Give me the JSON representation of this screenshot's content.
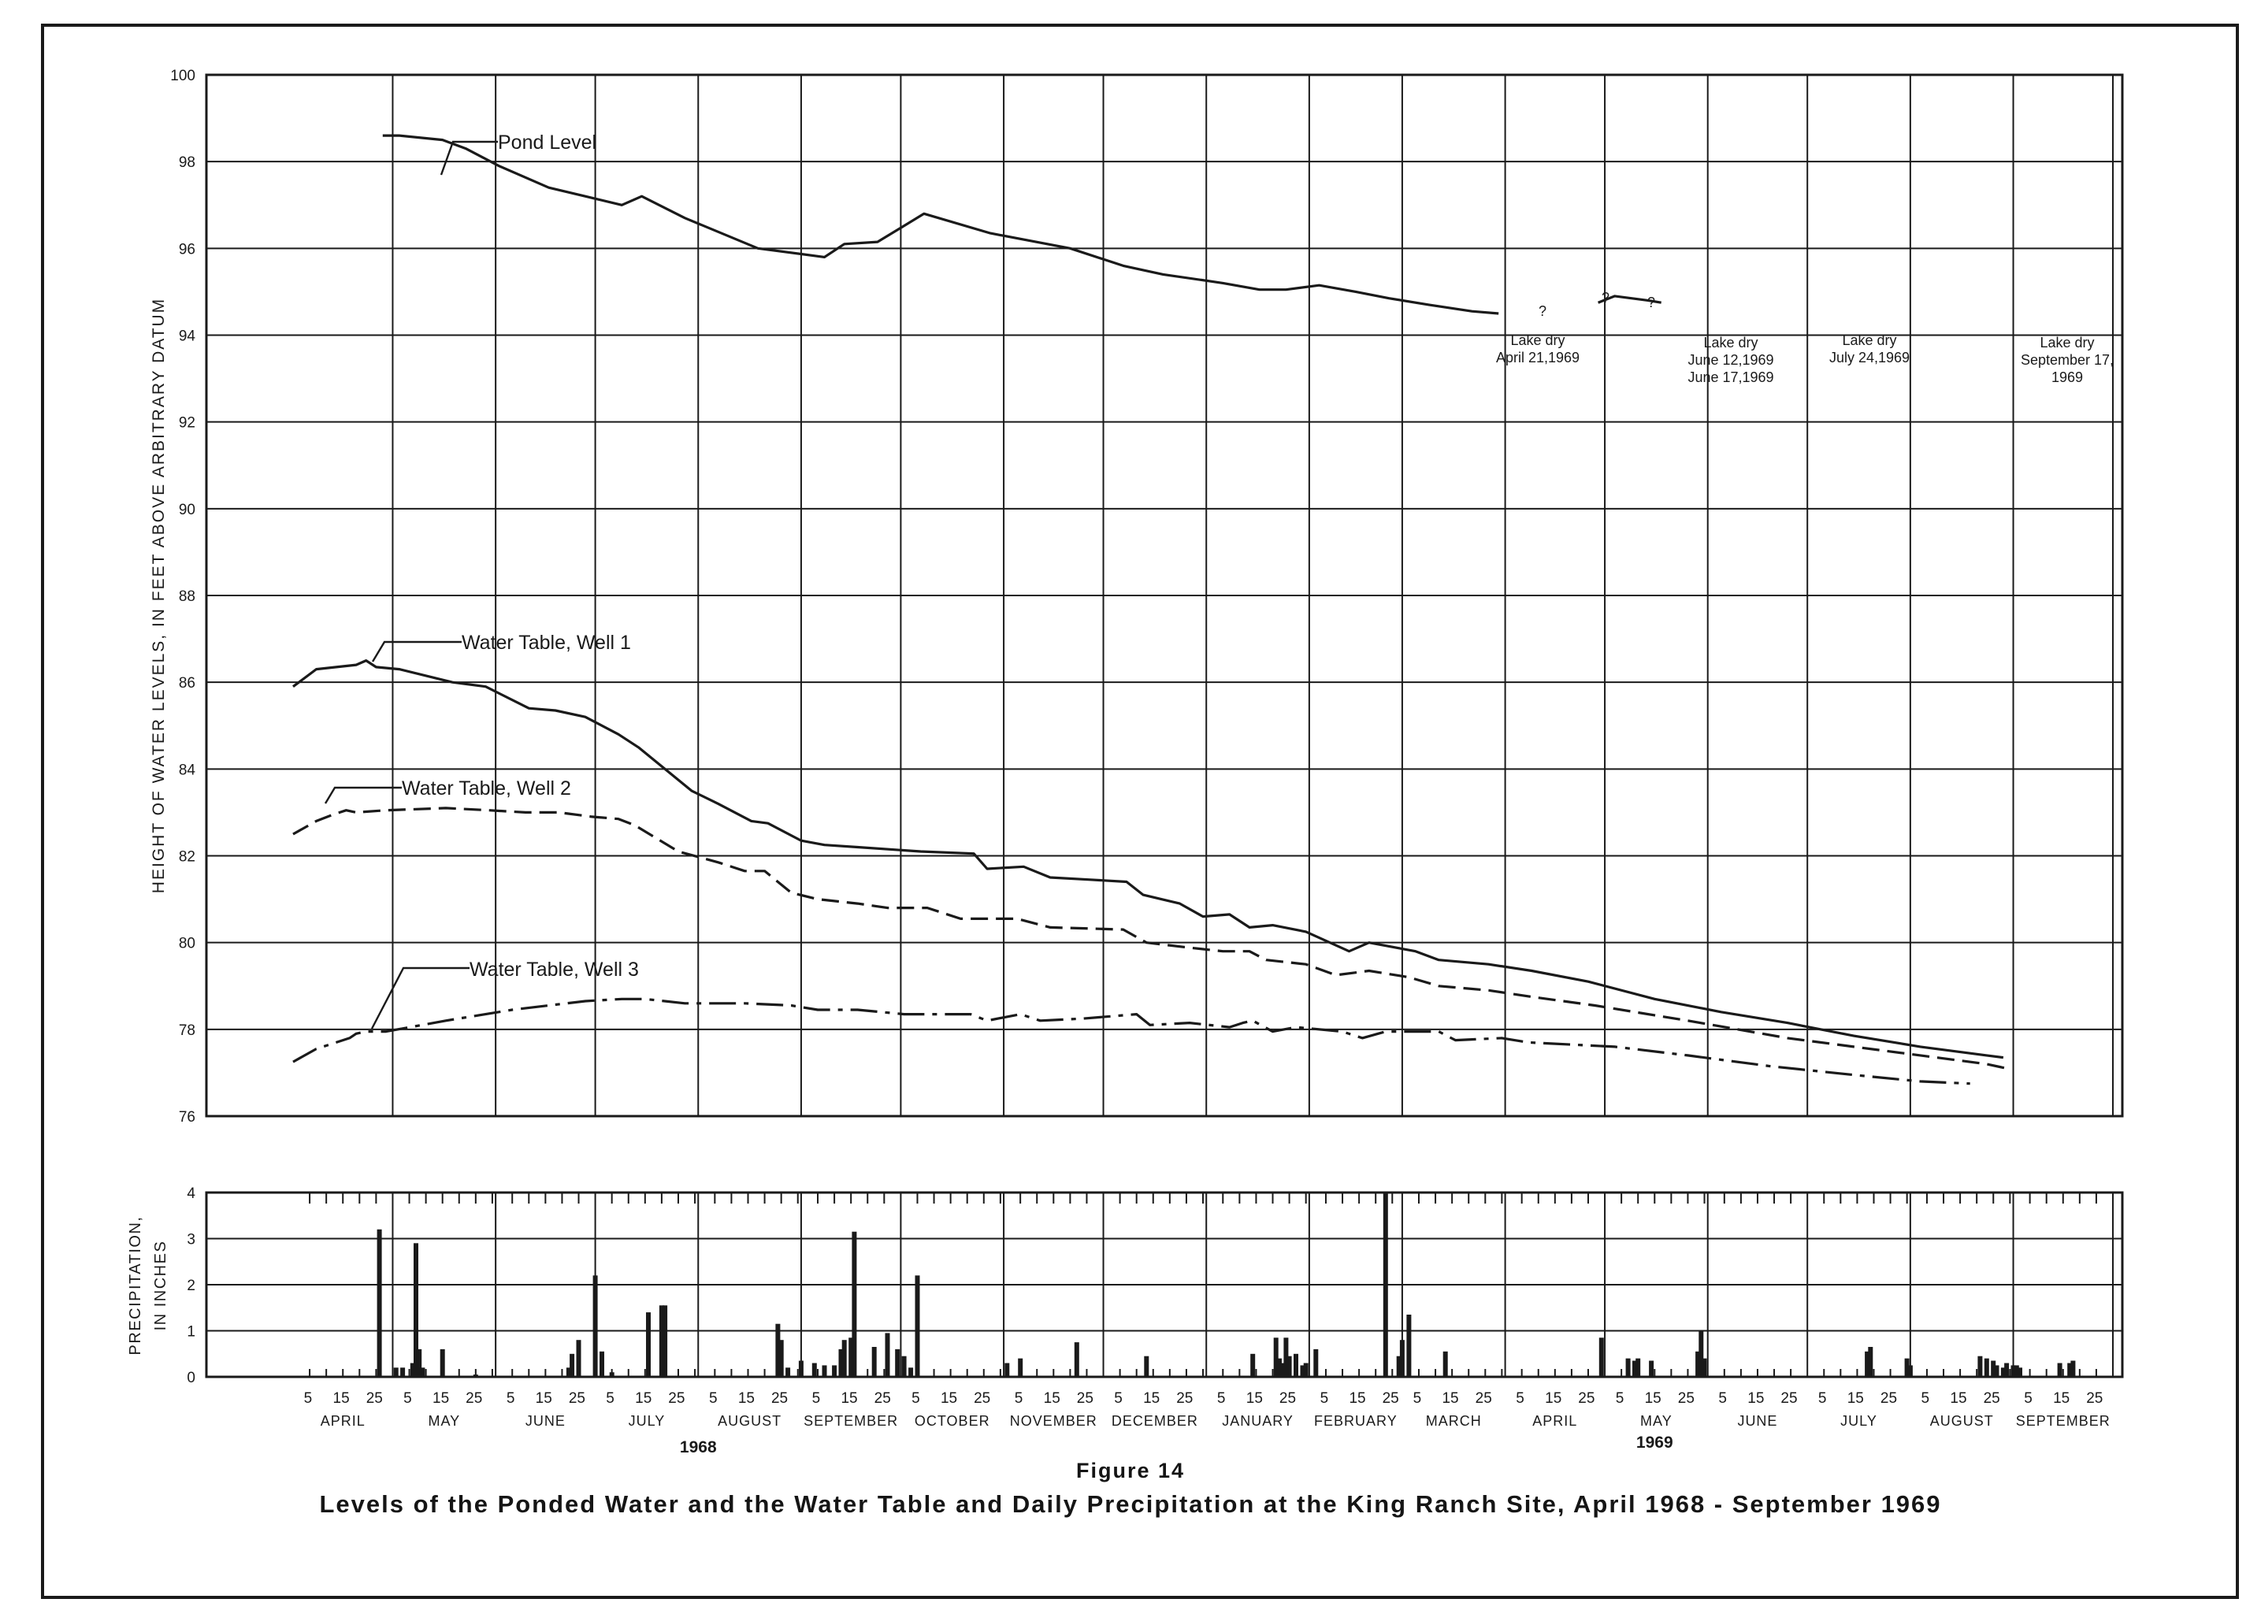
{
  "figure": {
    "number": "Figure 14",
    "title": "Levels of the Ponded Water and the Water Table and Daily Precipitation at the King Ranch Site, April 1968 - September 1969"
  },
  "chart_data": [
    {
      "type": "line",
      "title": "",
      "xlabel": "",
      "ylabel": "HEIGHT OF WATER LEVELS, IN FEET ABOVE ARBITRARY DATUM",
      "x_unit": "days since 1 April 1968",
      "xlim": [
        0,
        548
      ],
      "ylim": [
        76,
        100
      ],
      "yticks": [
        76,
        78,
        80,
        82,
        84,
        86,
        88,
        90,
        92,
        94,
        96,
        98,
        100
      ],
      "grid": true,
      "series": [
        {
          "name": "Pond Level",
          "style": "solid",
          "segments": [
            [
              [
                27,
                98.6
              ],
              [
                32,
                98.6
              ],
              [
                45,
                98.5
              ],
              [
                52,
                98.3
              ],
              [
                62,
                97.9
              ],
              [
                77,
                97.4
              ],
              [
                88,
                97.2
              ],
              [
                99,
                97.0
              ],
              [
                105,
                97.2
              ],
              [
                118,
                96.7
              ],
              [
                140,
                96.0
              ],
              [
                160,
                95.8
              ],
              [
                166,
                96.1
              ],
              [
                176,
                96.15
              ],
              [
                190,
                96.8
              ],
              [
                210,
                96.35
              ],
              [
                234,
                96.0
              ],
              [
                250,
                95.6
              ],
              [
                262,
                95.4
              ],
              [
                280,
                95.2
              ],
              [
                291,
                95.05
              ],
              [
                299,
                95.05
              ],
              [
                309,
                95.15
              ],
              [
                320,
                95.0
              ],
              [
                330,
                94.85
              ],
              [
                342,
                94.7
              ],
              [
                355,
                94.55
              ],
              [
                363,
                94.5
              ]
            ],
            [
              [
                393,
                94.75
              ],
              [
                398,
                94.9
              ],
              [
                408,
                94.8
              ],
              [
                412,
                94.75
              ]
            ]
          ],
          "label_points": [
            [
              365,
              94.5
            ],
            [
              396,
              94.85
            ],
            [
              410,
              94.75
            ]
          ]
        },
        {
          "name": "Water Table, Well 1",
          "style": "solid",
          "segments": [
            [
              [
                0,
                85.9
              ],
              [
                7,
                86.3
              ],
              [
                19,
                86.4
              ],
              [
                22,
                86.5
              ],
              [
                25,
                86.35
              ],
              [
                32,
                86.3
              ],
              [
                48,
                86.0
              ],
              [
                58,
                85.9
              ],
              [
                71,
                85.4
              ],
              [
                79,
                85.35
              ],
              [
                88,
                85.2
              ],
              [
                98,
                84.8
              ],
              [
                104,
                84.5
              ],
              [
                120,
                83.5
              ],
              [
                128,
                83.2
              ],
              [
                138,
                82.8
              ],
              [
                143,
                82.75
              ],
              [
                153,
                82.35
              ],
              [
                160,
                82.25
              ],
              [
                170,
                82.2
              ],
              [
                189,
                82.1
              ],
              [
                205,
                82.05
              ],
              [
                209,
                81.7
              ],
              [
                220,
                81.75
              ],
              [
                228,
                81.5
              ],
              [
                240,
                81.45
              ],
              [
                251,
                81.4
              ],
              [
                256,
                81.1
              ],
              [
                267,
                80.9
              ],
              [
                274,
                80.6
              ],
              [
                282,
                80.65
              ],
              [
                288,
                80.35
              ],
              [
                295,
                80.4
              ],
              [
                305,
                80.25
              ],
              [
                318,
                79.8
              ],
              [
                324,
                80.0
              ],
              [
                338,
                79.8
              ],
              [
                345,
                79.6
              ],
              [
                360,
                79.5
              ],
              [
                373,
                79.35
              ],
              [
                390,
                79.1
              ],
              [
                410,
                78.7
              ],
              [
                430,
                78.4
              ],
              [
                450,
                78.15
              ],
              [
                470,
                77.85
              ],
              [
                490,
                77.6
              ],
              [
                510,
                77.4
              ],
              [
                515,
                77.35
              ]
            ]
          ]
        },
        {
          "name": "Water Table, Well 2",
          "style": "dashed",
          "segments": [
            [
              [
                0,
                82.5
              ],
              [
                7,
                82.8
              ],
              [
                12,
                82.95
              ],
              [
                16,
                83.05
              ],
              [
                19,
                83.0
              ],
              [
                28,
                83.05
              ],
              [
                46,
                83.1
              ],
              [
                59,
                83.05
              ],
              [
                70,
                83.0
              ],
              [
                80,
                83.0
              ],
              [
                90,
                82.9
              ],
              [
                98,
                82.85
              ],
              [
                103,
                82.7
              ],
              [
                116,
                82.1
              ],
              [
                128,
                81.85
              ],
              [
                136,
                81.65
              ],
              [
                142,
                81.65
              ],
              [
                150,
                81.15
              ],
              [
                158,
                81.0
              ],
              [
                170,
                80.9
              ],
              [
                179,
                80.8
              ],
              [
                191,
                80.8
              ],
              [
                201,
                80.55
              ],
              [
                218,
                80.55
              ],
              [
                228,
                80.35
              ],
              [
                250,
                80.3
              ],
              [
                257,
                80.0
              ],
              [
                268,
                79.9
              ],
              [
                280,
                79.8
              ],
              [
                288,
                79.8
              ],
              [
                293,
                79.6
              ],
              [
                305,
                79.5
              ],
              [
                314,
                79.25
              ],
              [
                324,
                79.35
              ],
              [
                336,
                79.2
              ],
              [
                345,
                79.0
              ],
              [
                360,
                78.9
              ],
              [
                373,
                78.75
              ],
              [
                392,
                78.55
              ],
              [
                420,
                78.2
              ],
              [
                450,
                77.8
              ],
              [
                480,
                77.5
              ],
              [
                510,
                77.2
              ],
              [
                516,
                77.1
              ]
            ]
          ],
          "label_points": [
            [
              11,
              83.1
            ],
            [
              16,
              83.1
            ]
          ]
        },
        {
          "name": "Water Table, Well 3",
          "style": "dash-dot",
          "segments": [
            [
              [
                0,
                77.25
              ],
              [
                7,
                77.55
              ],
              [
                17,
                77.8
              ],
              [
                19,
                77.9
              ],
              [
                22,
                77.95
              ],
              [
                28,
                77.95
              ],
              [
                46,
                78.2
              ],
              [
                66,
                78.45
              ],
              [
                77,
                78.55
              ],
              [
                88,
                78.65
              ],
              [
                99,
                78.7
              ],
              [
                106,
                78.7
              ],
              [
                118,
                78.6
              ],
              [
                136,
                78.6
              ],
              [
                150,
                78.55
              ],
              [
                158,
                78.45
              ],
              [
                170,
                78.45
              ],
              [
                184,
                78.35
              ],
              [
                194,
                78.35
              ],
              [
                204,
                78.35
              ],
              [
                209,
                78.2
              ],
              [
                219,
                78.35
              ],
              [
                225,
                78.2
              ],
              [
                238,
                78.25
              ],
              [
                254,
                78.35
              ],
              [
                258,
                78.1
              ],
              [
                270,
                78.15
              ],
              [
                282,
                78.05
              ],
              [
                286,
                78.15
              ],
              [
                289,
                78.2
              ],
              [
                295,
                77.95
              ],
              [
                302,
                78.05
              ],
              [
                316,
                77.95
              ],
              [
                322,
                77.8
              ],
              [
                329,
                77.95
              ],
              [
                345,
                77.95
              ],
              [
                350,
                77.75
              ],
              [
                364,
                77.8
              ],
              [
                372,
                77.7
              ],
              [
                398,
                77.6
              ],
              [
                420,
                77.4
              ],
              [
                445,
                77.15
              ],
              [
                470,
                76.95
              ],
              [
                490,
                76.8
              ],
              [
                505,
                76.75
              ]
            ]
          ]
        }
      ],
      "annotations": [
        {
          "text": "Lake dry",
          "subtext": "April 21,1969"
        },
        {
          "text": "Lake dry",
          "subtext": "June 12,1969\nJune 17,1969"
        },
        {
          "text": "Lake dry",
          "subtext": "July 24,1969"
        },
        {
          "text": "Lake dry",
          "subtext": "September 17,\n1969"
        },
        {
          "text": "?",
          "subtext": ""
        },
        {
          "text": "?",
          "subtext": ""
        },
        {
          "text": "?",
          "subtext": ""
        }
      ]
    },
    {
      "type": "bar",
      "title": "",
      "xlabel": "",
      "ylabel": "PRECIPITATION, IN INCHES",
      "x_unit": "days since 1 April 1968",
      "xlim": [
        0,
        548
      ],
      "ylim": [
        0,
        4
      ],
      "yticks": [
        0,
        1,
        2,
        3,
        4
      ],
      "grid": true,
      "month_labels": [
        "APRIL",
        "MAY",
        "JUNE",
        "JULY",
        "AUGUST",
        "SEPTEMBER",
        "OCTOBER",
        "NOVEMBER",
        "DECEMBER",
        "JANUARY",
        "FEBRUARY",
        "MARCH",
        "APRIL",
        "MAY",
        "JUNE",
        "JULY",
        "AUGUST",
        "SEPTEMBER"
      ],
      "day_tick_labels": [
        "5",
        "15",
        "25"
      ],
      "year_labels": [
        "1968",
        "1969"
      ],
      "bars_x": [
        26,
        31,
        33,
        36,
        37,
        38,
        39,
        45,
        55,
        83,
        84,
        86,
        91,
        93,
        96,
        107,
        111,
        112,
        146,
        147,
        149,
        153,
        157,
        160,
        163,
        165,
        166,
        168,
        169,
        175,
        179,
        182,
        184,
        186,
        188,
        215,
        219,
        236,
        257,
        289,
        296,
        297,
        298,
        299,
        300,
        302,
        304,
        305,
        308,
        329,
        333,
        334,
        336,
        347,
        394,
        402,
        404,
        405,
        409,
        423,
        424,
        425,
        474,
        475,
        486,
        487,
        508,
        510,
        512,
        513,
        515,
        516,
        518,
        519,
        520,
        532,
        535,
        536
      ],
      "bars_y": [
        3.2,
        0.2,
        0.2,
        0.3,
        2.9,
        0.6,
        0.2,
        0.6,
        0.05,
        0.2,
        0.5,
        0.8,
        2.2,
        0.55,
        0.1,
        1.4,
        1.55,
        1.55,
        1.15,
        0.8,
        0.2,
        0.35,
        0.3,
        0.25,
        0.25,
        0.6,
        0.8,
        0.85,
        3.15,
        0.65,
        0.95,
        0.6,
        0.45,
        0.2,
        2.2,
        0.3,
        0.4,
        0.75,
        0.45,
        0.5,
        0.85,
        0.4,
        0.3,
        0.85,
        0.45,
        0.5,
        0.25,
        0.3,
        0.6,
        4.0,
        0.45,
        0.8,
        1.35,
        0.55,
        0.85,
        0.4,
        0.35,
        0.4,
        0.35,
        0.55,
        1.0,
        0.4,
        0.55,
        0.65,
        0.4,
        0.25,
        0.45,
        0.4,
        0.35,
        0.25,
        0.2,
        0.3,
        0.25,
        0.25,
        0.2,
        0.3,
        0.3,
        0.35
      ]
    }
  ]
}
